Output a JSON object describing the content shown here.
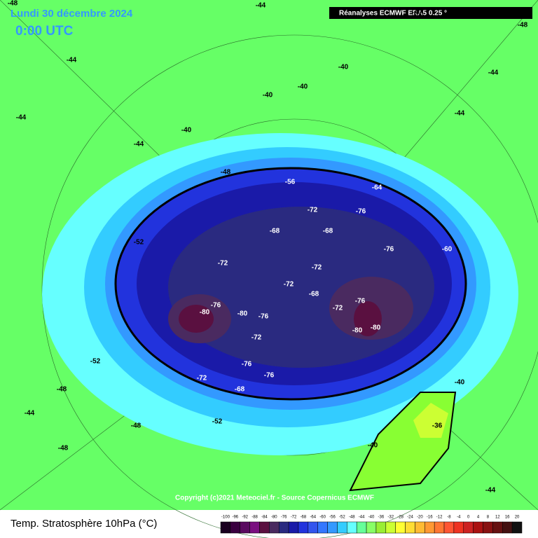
{
  "header": {
    "date": "Lundi 30 décembre 2024",
    "time": "0:00 UTC",
    "source": "Réanalyses ECMWF ERA5 0.25 °"
  },
  "map": {
    "contour_labels": [
      -48,
      -44,
      -40,
      -48,
      -44,
      -40,
      -44,
      -40,
      -40,
      -44,
      -40,
      -44,
      -44,
      -48,
      -56,
      -64,
      -72,
      -76,
      -52,
      -68,
      -68,
      -72,
      -72,
      -76,
      -60,
      -72,
      -68,
      -80,
      -76,
      -80,
      -76,
      -72,
      -76,
      -80,
      -80,
      -72,
      -76,
      -72,
      -68,
      -76,
      -52,
      -48,
      -52,
      -48,
      -40,
      -36,
      -40,
      -44,
      -48,
      -44
    ]
  },
  "copyright": "Copyright (c)2021 Meteociel.fr - Source Copernicus ECMWF",
  "footer": {
    "title": "Temp. Stratosphère 10hPa (°C)"
  },
  "legend": {
    "ticks": [
      -100,
      -96,
      -92,
      -88,
      -84,
      -80,
      -76,
      -72,
      -68,
      -64,
      -60,
      -56,
      -52,
      -48,
      -44,
      -40,
      -36,
      -32,
      -28,
      -24,
      -20,
      -16,
      -12,
      -8,
      -4,
      0,
      4,
      8,
      12,
      16,
      20
    ],
    "colors": [
      "#1a0020",
      "#3a0040",
      "#5a0a60",
      "#7a1080",
      "#5a1040",
      "#4a2a60",
      "#2a2a80",
      "#1a1aa8",
      "#2233dd",
      "#3355ee",
      "#3377ff",
      "#3399ff",
      "#33ccff",
      "#66ffff",
      "#66ff99",
      "#88ff66",
      "#99ee33",
      "#ccff33",
      "#ffff33",
      "#ffdd33",
      "#ffbb33",
      "#ff9933",
      "#ff7733",
      "#ff5533",
      "#ee3322",
      "#cc2222",
      "#aa1111",
      "#881111",
      "#661111",
      "#441111",
      "#111111"
    ]
  }
}
